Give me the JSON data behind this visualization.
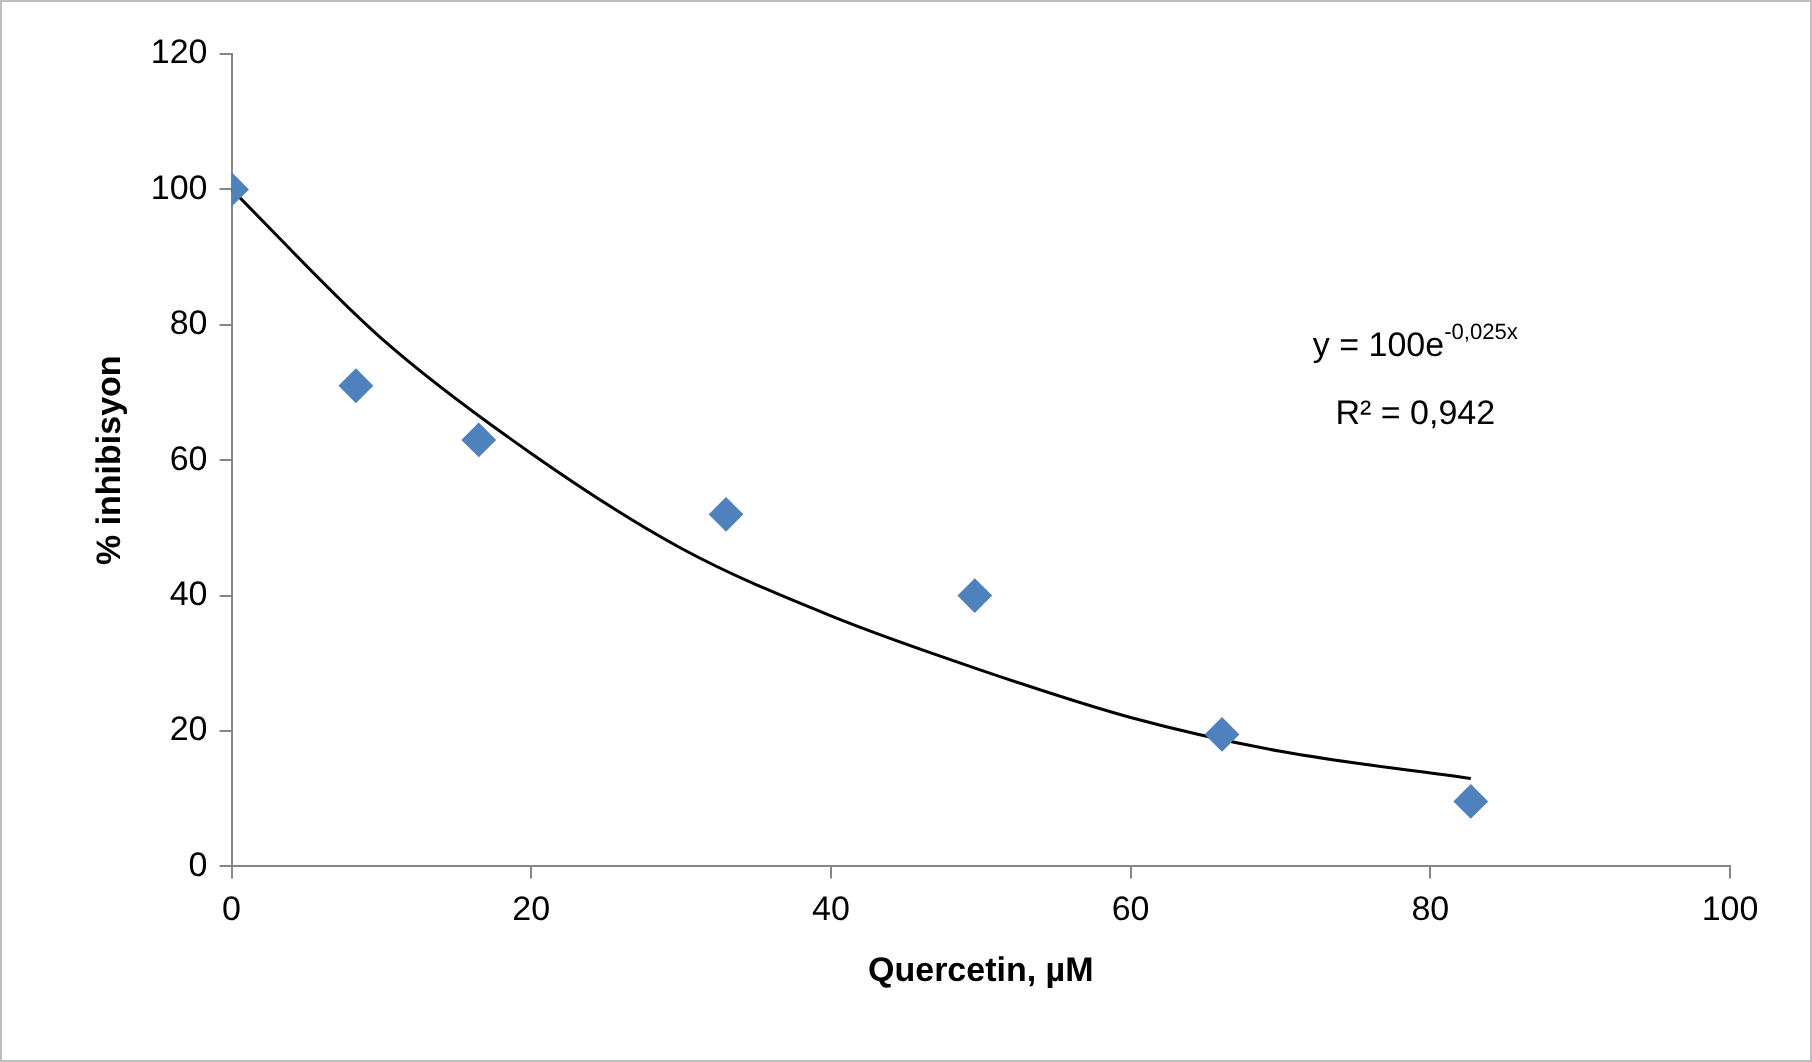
{
  "chart_data": {
    "type": "scatter",
    "xlabel": "Quercetin, µM",
    "ylabel": "% inhibisyon",
    "xlim": [
      0,
      100
    ],
    "xticks": [
      0,
      20,
      40,
      60,
      80,
      100
    ],
    "ylim": [
      0,
      120
    ],
    "yticks": [
      0,
      20,
      40,
      60,
      80,
      100,
      120
    ],
    "grid": false,
    "legend": false,
    "marker": "diamond",
    "series": [
      {
        "color": "#4f81bd",
        "x": [
          0,
          8.3,
          16.5,
          33,
          49.6,
          66.1,
          82.7
        ],
        "values": [
          100,
          71,
          63,
          52,
          40,
          19.5,
          9.6
        ]
      },
      {
        "type": "line",
        "color": "#000000",
        "marker": "none",
        "line_style": "solid",
        "x": [
          0,
          10,
          20,
          30,
          40,
          50,
          60,
          70,
          82.7
        ],
        "values": [
          100,
          78,
          61,
          47,
          37,
          29,
          22,
          17,
          13
        ]
      }
    ],
    "annotations": [
      "y = 100e$^{-0,025x}$",
      "R² = 0,942"
    ]
  }
}
